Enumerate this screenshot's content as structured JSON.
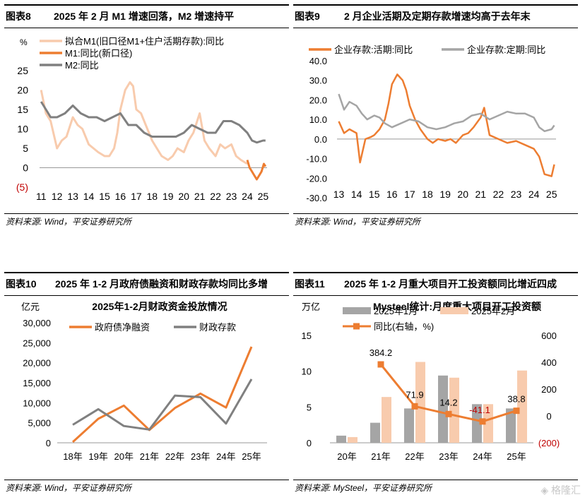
{
  "colors": {
    "orange": "#ED7D31",
    "light_orange": "#F8CBAD",
    "gray": "#808080",
    "gray_light": "#A5A5A5",
    "red": "#C00000"
  },
  "panels": [
    {
      "num": "图表8",
      "title": "2025 年 2 月 M1 增速回落，M2 增速持平",
      "source": "资料来源: Wind，平安证券研究所"
    },
    {
      "num": "图表9",
      "title": "2 月企业活期及定期存款增速均高于去年末",
      "source": "资料来源: Wind，平安证券研究所"
    },
    {
      "num": "图表10",
      "title": "2025 年 1-2 月政府债融资和财政存款均同比多增",
      "source": "资料来源: Wind，平安证券研究所"
    },
    {
      "num": "图表11",
      "title": "2025 年 1-2 月重大项目开工投资额同比增近四成",
      "source": "资料来源: MySteel，平安证券研究所"
    }
  ],
  "watermark": "格隆汇",
  "chart_data": [
    {
      "type": "line",
      "unit": "%",
      "ylim": [
        -5,
        25
      ],
      "yticks": [
        "25",
        "20",
        "15",
        "10",
        "5",
        "0",
        "(5)"
      ],
      "xticks": [
        "11",
        "12",
        "13",
        "14",
        "15",
        "16",
        "17",
        "18",
        "19",
        "20",
        "21",
        "22",
        "23",
        "24",
        "25"
      ],
      "x_start": 2010.9,
      "x_end": 2025.25,
      "series": [
        {
          "name": "拟合M1(旧口径M1+住户活期存款):同比",
          "color": "#F8CBAD",
          "x": [
            2011.0,
            2011.3,
            2011.6,
            2012.0,
            2012.3,
            2012.6,
            2013.0,
            2013.3,
            2013.6,
            2014.0,
            2014.3,
            2014.6,
            2015.0,
            2015.3,
            2015.6,
            2015.8,
            2016.0,
            2016.3,
            2016.6,
            2016.8,
            2017.0,
            2017.3,
            2017.6,
            2018.0,
            2018.3,
            2018.6,
            2019.0,
            2019.3,
            2019.6,
            2020.0,
            2020.3,
            2020.6,
            2021.0,
            2021.3,
            2021.6,
            2022.0,
            2022.3,
            2022.6,
            2023.0,
            2023.3,
            2023.6,
            2024.0
          ],
          "y": [
            20,
            14,
            12,
            5,
            7,
            8,
            13,
            11,
            10,
            6,
            5,
            4,
            3,
            3,
            5,
            9,
            15,
            20,
            22,
            21,
            15,
            14,
            11,
            7,
            5,
            3,
            2,
            3,
            5,
            4,
            7,
            9,
            14,
            7,
            5,
            3,
            6,
            5,
            6,
            3,
            2,
            1
          ]
        },
        {
          "name": "M1:同比(新口径)",
          "color": "#ED7D31",
          "x": [
            2024.0,
            2024.15,
            2024.3,
            2024.45,
            2024.6,
            2024.75,
            2024.9,
            2025.05,
            2025.15
          ],
          "y": [
            2,
            0,
            -1,
            -2,
            -3,
            -2,
            -1,
            1,
            0.3
          ]
        },
        {
          "name": "M2:同比",
          "color": "#808080",
          "x": [
            2011.0,
            2011.3,
            2011.6,
            2012.0,
            2012.5,
            2013.0,
            2013.5,
            2014.0,
            2014.5,
            2015.0,
            2015.5,
            2016.0,
            2016.5,
            2017.0,
            2017.5,
            2018.0,
            2018.5,
            2019.0,
            2019.5,
            2020.0,
            2020.5,
            2021.0,
            2021.5,
            2022.0,
            2022.5,
            2023.0,
            2023.5,
            2024.0,
            2024.3,
            2024.6,
            2025.0,
            2025.15
          ],
          "y": [
            17,
            15,
            13,
            13,
            14,
            16,
            14,
            13,
            13,
            12,
            13,
            14,
            11,
            11,
            9,
            8,
            8,
            8,
            8,
            9,
            11,
            10,
            9,
            9,
            12,
            12,
            11,
            9,
            7,
            6.5,
            7,
            7
          ]
        }
      ]
    },
    {
      "type": "line",
      "ylim": [
        -30,
        40
      ],
      "yticks": [
        "40.0",
        "30.0",
        "20.0",
        "10.0",
        "0.0",
        "-10.0",
        "-20.0",
        "-30.0"
      ],
      "xticks": [
        "13",
        "14",
        "15",
        "16",
        "17",
        "18",
        "19",
        "20",
        "21",
        "22",
        "23",
        "24",
        "25"
      ],
      "x_start": 2012.9,
      "x_end": 2025.25,
      "series": [
        {
          "name": "企业存款:活期:同比",
          "color": "#ED7D31",
          "x": [
            2013.0,
            2013.3,
            2013.6,
            2014.0,
            2014.2,
            2014.5,
            2014.8,
            2015.0,
            2015.3,
            2015.6,
            2015.8,
            2016.0,
            2016.3,
            2016.6,
            2016.8,
            2017.0,
            2017.3,
            2017.6,
            2018.0,
            2018.3,
            2018.6,
            2019.0,
            2019.3,
            2019.6,
            2020.0,
            2020.3,
            2020.6,
            2021.0,
            2021.2,
            2021.5,
            2022.0,
            2022.5,
            2023.0,
            2023.5,
            2024.0,
            2024.3,
            2024.6,
            2025.0,
            2025.15
          ],
          "y": [
            9,
            3,
            5,
            3,
            -12,
            0,
            1,
            2,
            5,
            10,
            18,
            28,
            33,
            30,
            25,
            17,
            10,
            5,
            0,
            -2,
            0,
            -1,
            0,
            -2,
            2,
            3,
            6,
            11,
            16,
            2,
            0,
            -2,
            -1,
            -3,
            -5,
            -9,
            -18,
            -19,
            -13
          ]
        },
        {
          "name": "企业存款:定期:同比",
          "color": "#A5A5A5",
          "x": [
            2013.0,
            2013.3,
            2013.6,
            2014.0,
            2014.3,
            2014.6,
            2015.0,
            2015.3,
            2015.6,
            2016.0,
            2016.5,
            2017.0,
            2017.5,
            2018.0,
            2018.5,
            2019.0,
            2019.5,
            2020.0,
            2020.5,
            2021.0,
            2021.5,
            2022.0,
            2022.5,
            2023.0,
            2023.5,
            2024.0,
            2024.3,
            2024.6,
            2025.0,
            2025.15
          ],
          "y": [
            23,
            15,
            19,
            17,
            13,
            10,
            12,
            11,
            8,
            6,
            8,
            10,
            9,
            6,
            5,
            6,
            8,
            9,
            12,
            13,
            10,
            12,
            14,
            13,
            13,
            11,
            6,
            4,
            5,
            7
          ]
        }
      ]
    },
    {
      "type": "line",
      "title": "2025年1-2月财政资金投放情况",
      "unit": "亿元",
      "ylim": [
        0,
        30000
      ],
      "yticks": [
        "30,000",
        "25,000",
        "20,000",
        "15,000",
        "10,000",
        "5,000",
        "0"
      ],
      "categories": [
        "18年",
        "19年",
        "20年",
        "21年",
        "22年",
        "23年",
        "24年",
        "25年"
      ],
      "series": [
        {
          "name": "政府债净融资",
          "color": "#ED7D31",
          "values": [
            200,
            6000,
            9300,
            3200,
            8700,
            12300,
            8800,
            24000
          ]
        },
        {
          "name": "财政存款",
          "color": "#808080",
          "values": [
            4500,
            8400,
            4200,
            3300,
            11800,
            11400,
            4800,
            15900
          ]
        }
      ]
    },
    {
      "type": "bar",
      "title": "Mysteel统计:月度重大项目开工投资额",
      "unit": "万亿",
      "ylim": [
        0,
        15
      ],
      "ylim_right": [
        -200,
        600
      ],
      "yticks": [
        "15",
        "10",
        "5",
        "0"
      ],
      "yticks_right": [
        "600",
        "400",
        "200",
        "0",
        "(200)"
      ],
      "categories": [
        "20年",
        "21年",
        "22年",
        "23年",
        "24年",
        "25年"
      ],
      "series": [
        {
          "name": "2025年1月",
          "color": "#A5A5A5",
          "values": [
            1.0,
            2.8,
            4.8,
            9.4,
            5.4,
            4.8
          ]
        },
        {
          "name": "2025年2月",
          "color": "#F8CBAD",
          "values": [
            0.8,
            6.4,
            11.3,
            9.1,
            5.4,
            10.1
          ]
        }
      ],
      "line_series": {
        "name": "同比(右轴，%)",
        "color": "#ED7D31",
        "x_index": [
          1,
          2,
          3,
          4,
          5
        ],
        "values": [
          384.2,
          71.9,
          14.2,
          -41.1,
          38.8
        ],
        "labels": [
          "384.2",
          "71.9",
          "14.2",
          "-41.1",
          "38.8"
        ]
      }
    }
  ]
}
